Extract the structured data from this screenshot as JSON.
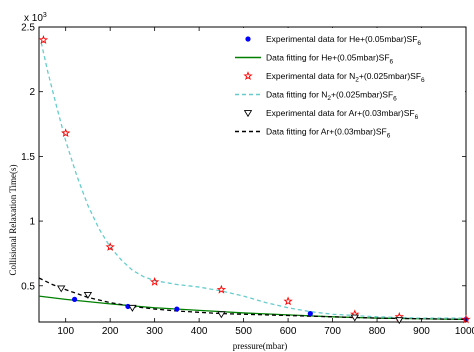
{
  "chart_data": {
    "type": "scatter",
    "title": "",
    "xlabel": "pressure(mbar)",
    "ylabel": "Collisional  Relaxation Time(s)",
    "y_multiplier": "x 10",
    "y_multiplier_exp": "3",
    "xlim": [
      40,
      1000
    ],
    "ylim": [
      0.22,
      2.5
    ],
    "xticks": [
      100,
      200,
      300,
      400,
      500,
      600,
      700,
      800,
      900,
      1000
    ],
    "yticks": [
      0.5,
      1,
      1.5,
      2,
      2.5
    ],
    "ytick_labels": [
      "0.5",
      "1",
      "1.5",
      "2",
      "2.5"
    ],
    "legend_position": "top-right",
    "series": [
      {
        "name": "Experimental data for He+(0.05mbar)SF6",
        "legend_main": "Experimental data for He+(0.05mbar)SF",
        "legend_sub": "6",
        "kind": "points",
        "marker": "filled-circle",
        "color": "#0000ff",
        "x": [
          120,
          240,
          350,
          650,
          1000
        ],
        "y": [
          0.395,
          0.34,
          0.32,
          0.285,
          0.24
        ]
      },
      {
        "name": "Data fitting for He+(0.05mbar)SF6",
        "legend_main": "Data fitting for He+(0.05mbar)SF",
        "legend_sub": "6",
        "kind": "line",
        "dash": "solid",
        "color": "#008000",
        "x": [
          40,
          100,
          200,
          300,
          400,
          500,
          600,
          700,
          800,
          900,
          1000
        ],
        "y": [
          0.42,
          0.395,
          0.36,
          0.33,
          0.31,
          0.29,
          0.275,
          0.26,
          0.25,
          0.245,
          0.24
        ]
      },
      {
        "name": "Experimental data for N2+(0.025mbar)SF6",
        "legend_main": "Experimental data for N",
        "legend_mid_sub": "2",
        "legend_rest": "+(0.025mbar)SF",
        "legend_sub": "6",
        "kind": "points",
        "marker": "star",
        "color": "#ff0000",
        "x": [
          50,
          100,
          200,
          300,
          450,
          600,
          750,
          850,
          1000
        ],
        "y": [
          2.4,
          1.68,
          0.8,
          0.53,
          0.47,
          0.38,
          0.28,
          0.26,
          0.24
        ]
      },
      {
        "name": "Data fitting for N2+(0.025mbar)SF6",
        "legend_main": "Data fitting for N",
        "legend_mid_sub": "2",
        "legend_rest": "+(0.025mbar)SF",
        "legend_sub": "6",
        "kind": "line",
        "dash": "dashed",
        "color": "#66cccc",
        "x": [
          45,
          60,
          80,
          100,
          125,
          150,
          175,
          200,
          225,
          250,
          275,
          300,
          350,
          400,
          450,
          500,
          550,
          600,
          650,
          700,
          750,
          800,
          850,
          900,
          950,
          1000
        ],
        "y": [
          2.38,
          2.15,
          1.88,
          1.62,
          1.35,
          1.12,
          0.94,
          0.8,
          0.7,
          0.62,
          0.57,
          0.54,
          0.51,
          0.49,
          0.46,
          0.42,
          0.37,
          0.33,
          0.3,
          0.28,
          0.27,
          0.26,
          0.255,
          0.25,
          0.25,
          0.25
        ]
      },
      {
        "name": "Experimental data for Ar+(0.03mbar)SF6",
        "legend_main": "Experimental data for Ar+(0.03mbar)SF",
        "legend_sub": "6",
        "kind": "points",
        "marker": "open-triangle-down",
        "color": "#000000",
        "x": [
          90,
          150,
          250,
          450,
          750,
          850
        ],
        "y": [
          0.48,
          0.43,
          0.33,
          0.28,
          0.255,
          0.235
        ]
      },
      {
        "name": "Data fitting for Ar+(0.03mbar)SF6",
        "legend_main": "Data fitting for Ar+(0.03mbar)SF",
        "legend_sub": "6",
        "kind": "line",
        "dash": "dashed",
        "color": "#000000",
        "x": [
          40,
          70,
          100,
          150,
          200,
          250,
          300,
          350,
          400,
          450,
          500,
          600,
          700,
          800,
          900,
          1000
        ],
        "y": [
          0.56,
          0.51,
          0.47,
          0.41,
          0.37,
          0.34,
          0.32,
          0.305,
          0.295,
          0.285,
          0.28,
          0.27,
          0.26,
          0.25,
          0.245,
          0.24
        ]
      }
    ]
  }
}
